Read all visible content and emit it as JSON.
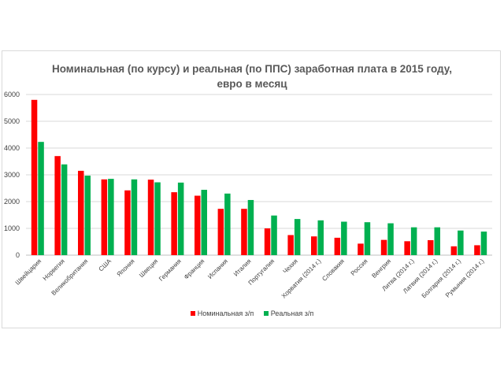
{
  "chart_data": {
    "type": "bar",
    "title_line1": "Номинальная (по курсу) и реальная (по ППС) заработная плата в 2015 году,",
    "title_line2": "евро в месяц",
    "categories": [
      "Швейцария",
      "Норвегия",
      "Великобритания",
      "США",
      "Япония",
      "Швеция",
      "Германия",
      "Франция",
      "Испания",
      "Италия",
      "Португалия",
      "Чехия",
      "Хорватия (2014 г.)",
      "Словакия",
      "Россия",
      "Венгрия",
      "Литва (2014 г.)",
      "Латвия (2014 г.)",
      "Болгария (2014 г.)",
      "Румыния (2014 г.)"
    ],
    "series": [
      {
        "name": "Номинальная з/п",
        "color": "#ff0000",
        "values": [
          5800,
          3700,
          3150,
          2830,
          2420,
          2820,
          2350,
          2220,
          1730,
          1730,
          1000,
          750,
          700,
          650,
          430,
          570,
          520,
          560,
          330,
          370
        ]
      },
      {
        "name": "Реальная з/п",
        "color": "#00b050",
        "values": [
          4230,
          3390,
          2970,
          2850,
          2830,
          2720,
          2710,
          2440,
          2300,
          2060,
          1480,
          1350,
          1300,
          1250,
          1230,
          1190,
          1040,
          1040,
          920,
          880
        ]
      }
    ],
    "ylim": [
      0,
      6000
    ],
    "yticks": [
      "0",
      "1000",
      "2000",
      "3000",
      "4000",
      "5000",
      "6000"
    ],
    "grid": true,
    "legend_position": "bottom"
  }
}
